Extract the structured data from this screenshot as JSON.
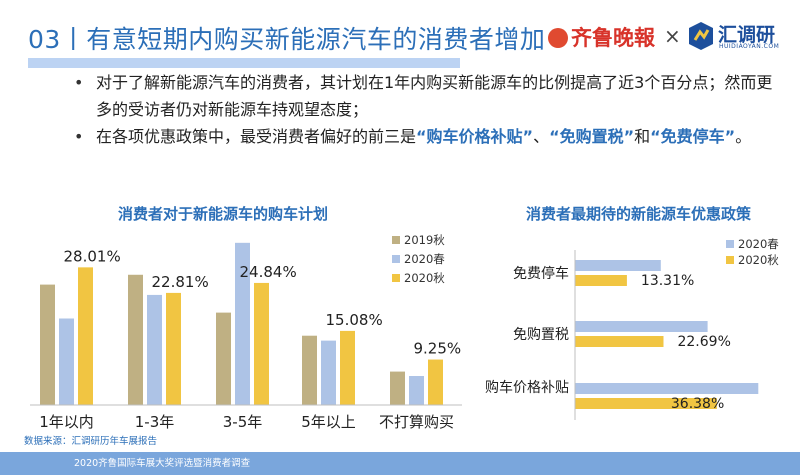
{
  "header": {
    "title": "03丨有意短期内购买新能源汽车的消费者增加",
    "logo_left": "齐鲁晚報",
    "logo_separator": "×",
    "logo_right": "汇调研",
    "logo_right_sub": "HUIDIAOYAN.COM",
    "brand_color": "#2c6fb8"
  },
  "bullets": {
    "b1": "对于了解新能源汽车的消费者，其计划在1年内购买新能源车的比例提高了近3个百分点；然而更多的受访者仍对新能源车持观望态度；",
    "b2_pre": "在各项优惠政策中，最受消费者偏好的前三是",
    "b2_h1": "“购车价格补贴”",
    "b2_mid1": "、",
    "b2_h2": "“免购置税”",
    "b2_mid2": "和",
    "b2_h3": "“免费停车”",
    "b2_end": "。"
  },
  "chart_data": [
    {
      "type": "bar",
      "title": "消费者对于新能源车的购车计划",
      "categories": [
        "1年以内",
        "1-3年",
        "3-5年",
        "5年以上",
        "不打算购买"
      ],
      "series": [
        {
          "name": "2019秋",
          "color": "#bfb083",
          "values": [
            24.5,
            26.5,
            18.8,
            14.1,
            6.8
          ]
        },
        {
          "name": "2020春",
          "color": "#adc3e6",
          "values": [
            17.6,
            22.4,
            33.0,
            13.1,
            5.9
          ]
        },
        {
          "name": "2020秋",
          "color": "#f1c542",
          "values": [
            28.01,
            22.81,
            24.84,
            15.08,
            9.25
          ]
        }
      ],
      "data_labels": [
        "28.01%",
        "22.81%",
        "24.84%",
        "15.08%",
        "9.25%"
      ],
      "legend_position": "right",
      "ylim": [
        0,
        35
      ]
    },
    {
      "type": "bar",
      "orientation": "horizontal",
      "title": "消费者最期待的新能源车优惠政策",
      "categories": [
        "免费停车",
        "免购置税",
        "购车价格补贴"
      ],
      "series": [
        {
          "name": "2020春",
          "color": "#adc3e6",
          "values": [
            22.0,
            34.0,
            47.0
          ]
        },
        {
          "name": "2020秋",
          "color": "#f1c542",
          "values": [
            13.31,
            22.69,
            36.38
          ]
        }
      ],
      "data_labels": [
        "13.31%",
        "22.69%",
        "36.38%"
      ],
      "legend_position": "top-right",
      "xlim": [
        0,
        50
      ]
    }
  ],
  "footer": {
    "source": "数据来源：汇调研历年车展报告",
    "caption": "2020齐鲁国际车展大奖评选暨消费者调查"
  }
}
